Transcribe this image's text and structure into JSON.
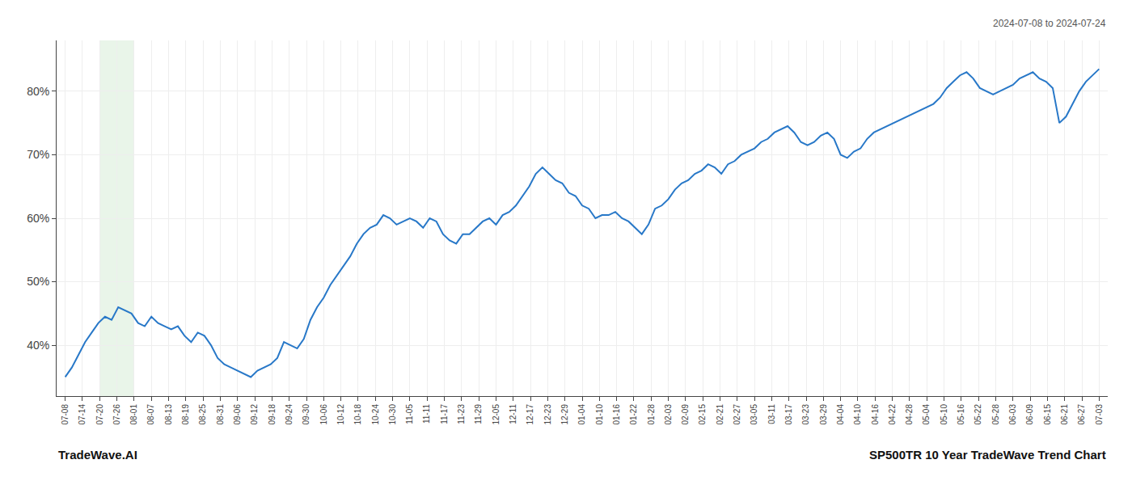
{
  "chart_data": {
    "type": "line",
    "annotations": [
      "2024-07-08 to 2024-07-24",
      "TradeWave.AI",
      "SP500TR 10 Year TradeWave Trend Chart"
    ],
    "x": [
      0,
      0.3846,
      0.7692,
      1.1538,
      1.5385,
      1.9231,
      2.3077,
      2.6923,
      3.0769,
      3.4615,
      3.8462,
      4.2308,
      4.6154,
      5,
      5.3846,
      5.7692,
      6.1538,
      6.5385,
      6.9231,
      7.3077,
      7.6923,
      8.0769,
      8.4615,
      8.8462,
      9.2308,
      9.6154,
      10,
      10.3846,
      10.7692,
      11.1538,
      11.5385,
      11.9231,
      12.3077,
      12.6923,
      13.0769,
      13.4615,
      13.8462,
      14.2308,
      14.6154,
      15,
      15.3846,
      15.7692,
      16.1538,
      16.5385,
      16.9231,
      17.3077,
      17.6923,
      18.0769,
      18.4615,
      18.8462,
      19.2308,
      19.6154,
      20,
      20.3846,
      20.7692,
      21.1538,
      21.5385,
      21.9231,
      22.3077,
      22.6923,
      23.0769,
      23.4615,
      23.8462,
      24.2308,
      24.6154,
      25,
      25.3846,
      25.7692,
      26.1538,
      26.5385,
      26.9231,
      27.3077,
      27.6923,
      28.0769,
      28.4615,
      28.8462,
      29.2308,
      29.6154,
      30,
      30.3846,
      30.7692,
      31.1538,
      31.5385,
      31.9231,
      32.3077,
      32.6923,
      33.0769,
      33.4615,
      33.8462,
      34.2308,
      34.6154,
      35,
      35.3846,
      35.7692,
      36.1538,
      36.5385,
      36.9231,
      37.3077,
      37.6923,
      38.0769,
      38.4615,
      38.8462,
      39.2308,
      39.6154,
      40,
      40.3846,
      40.7692,
      41.1538,
      41.5385,
      41.9231,
      42.3077,
      42.6923,
      43.0769,
      43.4615,
      43.8462,
      44.2308,
      44.6154,
      45,
      45.3846,
      45.7692,
      46.1538,
      46.5385,
      46.9231,
      47.3077,
      47.6923,
      48.0769,
      48.4615,
      48.8462,
      49.2308,
      49.6154,
      50,
      50.3846,
      50.7692,
      51.1538,
      51.5385,
      51.9231,
      52.3077,
      52.6923,
      53.0769,
      53.4615,
      53.8462,
      54.2308,
      54.6154,
      55,
      55.3846,
      55.7692,
      56.1538,
      56.5385,
      56.9231,
      57.3077,
      57.6923,
      58.0769,
      58.4615,
      58.8462,
      59.2308,
      59.6154,
      60
    ],
    "values": [
      35.0,
      36.5,
      38.5,
      40.5,
      42.0,
      43.5,
      44.5,
      44.0,
      46.0,
      45.5,
      45.0,
      43.5,
      43.0,
      44.5,
      43.5,
      43.0,
      42.5,
      43.0,
      41.5,
      40.5,
      42.0,
      41.5,
      40.0,
      38.0,
      37.0,
      36.5,
      36.0,
      35.5,
      35.0,
      36.0,
      36.5,
      37.0,
      38.0,
      40.5,
      40.0,
      39.5,
      41.0,
      44.0,
      46.0,
      47.5,
      49.5,
      51.0,
      52.5,
      54.0,
      56.0,
      57.5,
      58.5,
      59.0,
      60.5,
      60.0,
      59.0,
      59.5,
      60.0,
      59.5,
      58.5,
      60.0,
      59.5,
      57.5,
      56.5,
      56.0,
      57.5,
      57.5,
      58.5,
      59.5,
      60.0,
      59.0,
      60.5,
      61.0,
      62.0,
      63.5,
      65.0,
      67.0,
      68.0,
      67.0,
      66.0,
      65.5,
      64.0,
      63.5,
      62.0,
      61.5,
      60.0,
      60.5,
      60.5,
      61.0,
      60.0,
      59.5,
      58.5,
      57.5,
      59.0,
      61.5,
      62.0,
      63.0,
      64.5,
      65.5,
      66.0,
      67.0,
      67.5,
      68.5,
      68.0,
      67.0,
      68.5,
      69.0,
      70.0,
      70.5,
      71.0,
      72.0,
      72.5,
      73.5,
      74.0,
      74.5,
      73.5,
      72.0,
      71.5,
      72.0,
      73.0,
      73.5,
      72.5,
      70.0,
      69.5,
      70.5,
      71.0,
      72.5,
      73.5,
      74.0,
      74.5,
      75.0,
      75.5,
      76.0,
      76.5,
      77.0,
      77.5,
      78.0,
      79.0,
      80.5,
      81.5,
      82.5,
      83.0,
      82.0,
      80.5,
      80.0,
      79.5,
      80.0,
      80.5,
      81.0,
      82.0,
      82.5,
      83.0,
      82.0,
      81.5,
      80.5,
      75.0,
      76.0,
      78.0,
      80.0,
      81.5,
      82.5,
      83.5
    ],
    "color": "#2878c8",
    "highlight": {
      "start": 2,
      "end": 4,
      "color": "#c8e6c9"
    },
    "xlim": [
      -0.5,
      60.5
    ],
    "xticks": [
      {
        "value": 0,
        "label": "07-08"
      },
      {
        "value": 1,
        "label": "07-14"
      },
      {
        "value": 2,
        "label": "07-20"
      },
      {
        "value": 3,
        "label": "07-26"
      },
      {
        "value": 4,
        "label": "08-01"
      },
      {
        "value": 5,
        "label": "08-07"
      },
      {
        "value": 6,
        "label": "08-13"
      },
      {
        "value": 7,
        "label": "08-19"
      },
      {
        "value": 8,
        "label": "08-25"
      },
      {
        "value": 9,
        "label": "08-31"
      },
      {
        "value": 10,
        "label": "09-06"
      },
      {
        "value": 11,
        "label": "09-12"
      },
      {
        "value": 12,
        "label": "09-18"
      },
      {
        "value": 13,
        "label": "09-24"
      },
      {
        "value": 14,
        "label": "09-30"
      },
      {
        "value": 15,
        "label": "10-06"
      },
      {
        "value": 16,
        "label": "10-12"
      },
      {
        "value": 17,
        "label": "10-18"
      },
      {
        "value": 18,
        "label": "10-24"
      },
      {
        "value": 19,
        "label": "10-30"
      },
      {
        "value": 20,
        "label": "11-05"
      },
      {
        "value": 21,
        "label": "11-11"
      },
      {
        "value": 22,
        "label": "11-17"
      },
      {
        "value": 23,
        "label": "11-23"
      },
      {
        "value": 24,
        "label": "11-29"
      },
      {
        "value": 25,
        "label": "12-05"
      },
      {
        "value": 26,
        "label": "12-11"
      },
      {
        "value": 27,
        "label": "12-17"
      },
      {
        "value": 28,
        "label": "12-23"
      },
      {
        "value": 29,
        "label": "12-29"
      },
      {
        "value": 30,
        "label": "01-04"
      },
      {
        "value": 31,
        "label": "01-10"
      },
      {
        "value": 32,
        "label": "01-16"
      },
      {
        "value": 33,
        "label": "01-22"
      },
      {
        "value": 34,
        "label": "01-28"
      },
      {
        "value": 35,
        "label": "02-03"
      },
      {
        "value": 36,
        "label": "02-09"
      },
      {
        "value": 37,
        "label": "02-15"
      },
      {
        "value": 38,
        "label": "02-21"
      },
      {
        "value": 39,
        "label": "02-27"
      },
      {
        "value": 40,
        "label": "03-05"
      },
      {
        "value": 41,
        "label": "03-11"
      },
      {
        "value": 42,
        "label": "03-17"
      },
      {
        "value": 43,
        "label": "03-23"
      },
      {
        "value": 44,
        "label": "03-29"
      },
      {
        "value": 45,
        "label": "04-04"
      },
      {
        "value": 46,
        "label": "04-10"
      },
      {
        "value": 47,
        "label": "04-16"
      },
      {
        "value": 48,
        "label": "04-22"
      },
      {
        "value": 49,
        "label": "04-28"
      },
      {
        "value": 50,
        "label": "05-04"
      },
      {
        "value": 51,
        "label": "05-10"
      },
      {
        "value": 52,
        "label": "05-16"
      },
      {
        "value": 53,
        "label": "05-22"
      },
      {
        "value": 54,
        "label": "05-28"
      },
      {
        "value": 55,
        "label": "06-03"
      },
      {
        "value": 56,
        "label": "06-09"
      },
      {
        "value": 57,
        "label": "06-15"
      },
      {
        "value": 58,
        "label": "06-21"
      },
      {
        "value": 59,
        "label": "06-27"
      },
      {
        "value": 60,
        "label": "07-03"
      }
    ],
    "ylim": [
      32,
      88
    ],
    "yticks": [
      {
        "value": 40,
        "label": "40%"
      },
      {
        "value": 50,
        "label": "50%"
      },
      {
        "value": 60,
        "label": "60%"
      },
      {
        "value": 70,
        "label": "70%"
      },
      {
        "value": 80,
        "label": "80%"
      }
    ],
    "grid": true
  }
}
